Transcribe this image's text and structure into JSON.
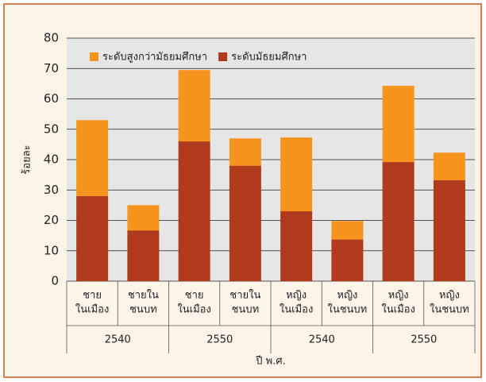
{
  "chart_data": {
    "type": "stacked-bar",
    "xlabel": "ปี พ.ศ.",
    "ylabel": "ร้อยละ",
    "categories": [
      [
        "ชาย",
        "ในเมือง"
      ],
      [
        "ชายใน",
        "ชนบท"
      ],
      [
        "ชาย",
        "ในเมือง"
      ],
      [
        "ชายใน",
        "ชนบท"
      ],
      [
        "หญิง",
        "ในเมือง"
      ],
      [
        "หญิง",
        "ในชนบท"
      ],
      [
        "หญิง",
        "ในเมือง"
      ],
      [
        "หญิง",
        "ในชนบท"
      ]
    ],
    "groups": [
      "2540",
      "2550",
      "2540",
      "2550"
    ],
    "series": [
      {
        "name": "ระดับมัธยมศึกษา",
        "color": "#b23a1c",
        "values": [
          28,
          16.7,
          46,
          38,
          23,
          13.7,
          39.2,
          33.2
        ]
      },
      {
        "name": "ระดับสูงกว่ามัธยมศึกษา",
        "color": "#f7941d",
        "values": [
          25,
          8.3,
          23.5,
          9,
          24.3,
          6.1,
          25.1,
          9.1
        ]
      }
    ],
    "ylim": [
      0,
      80
    ],
    "yticks": [
      0,
      10,
      20,
      30,
      40,
      50,
      60,
      70,
      80
    ],
    "grid": true
  }
}
